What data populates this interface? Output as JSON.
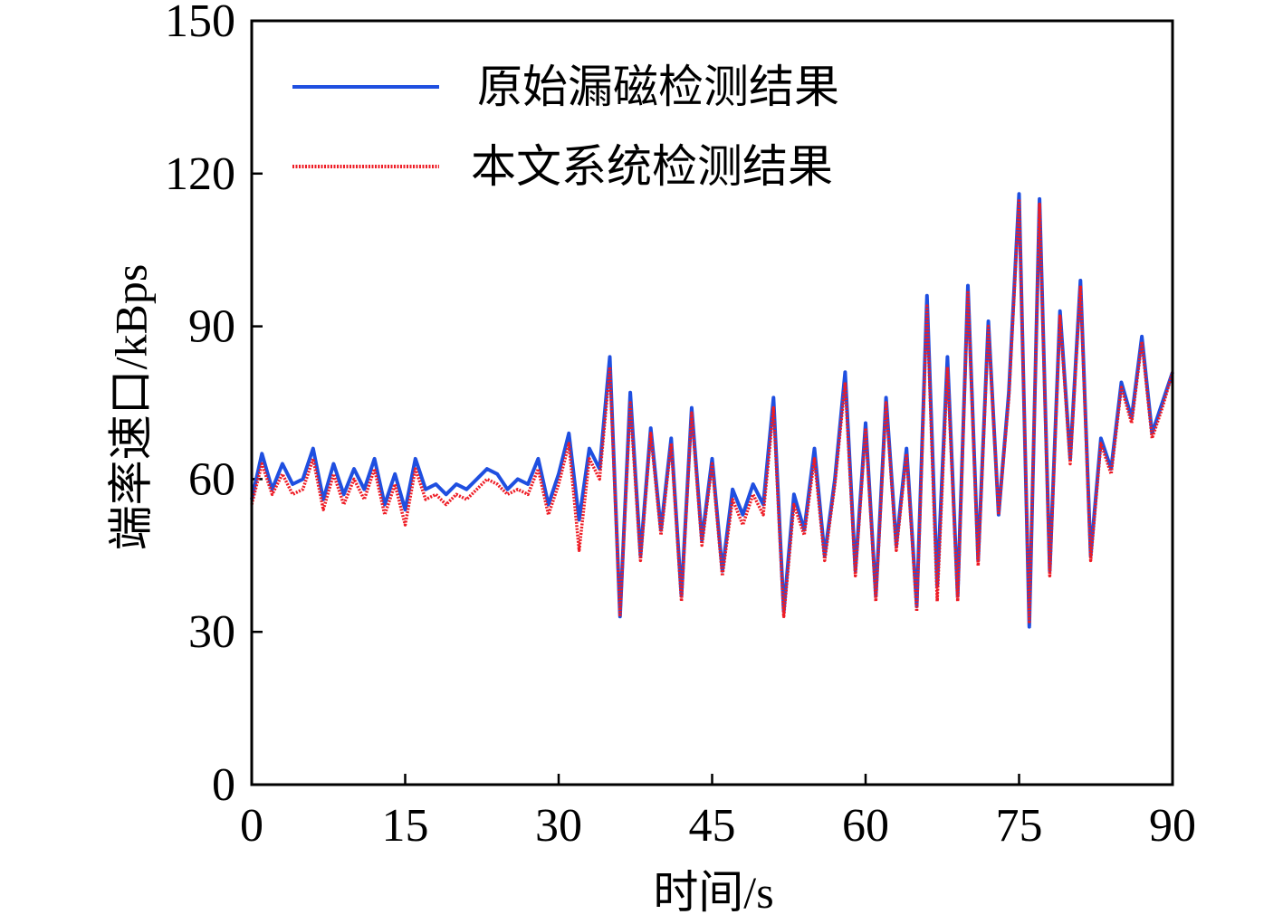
{
  "chart_data": {
    "type": "line",
    "xlabel": "时间/s",
    "ylabel": "端率速口/kBps",
    "x": [
      0,
      1,
      2,
      3,
      4,
      5,
      6,
      7,
      8,
      9,
      10,
      11,
      12,
      13,
      14,
      15,
      16,
      17,
      18,
      19,
      20,
      21,
      22,
      23,
      24,
      25,
      26,
      27,
      28,
      29,
      30,
      31,
      32,
      33,
      34,
      35,
      36,
      37,
      38,
      39,
      40,
      41,
      42,
      43,
      44,
      45,
      46,
      47,
      48,
      49,
      50,
      51,
      52,
      53,
      54,
      55,
      56,
      57,
      58,
      59,
      60,
      61,
      62,
      63,
      64,
      65,
      66,
      67,
      68,
      69,
      70,
      71,
      72,
      73,
      74,
      75,
      76,
      77,
      78,
      79,
      80,
      81,
      82,
      83,
      84,
      85,
      86,
      87,
      88,
      89,
      90
    ],
    "series": [
      {
        "name": "原始漏磁检测结果",
        "color": "#1f4fe0",
        "style": "solid",
        "values": [
          56,
          65,
          58,
          63,
          59,
          60,
          66,
          56,
          63,
          57,
          62,
          58,
          64,
          55,
          61,
          54,
          64,
          58,
          59,
          57,
          59,
          58,
          60,
          62,
          61,
          58,
          60,
          59,
          64,
          55,
          61,
          69,
          52,
          66,
          62,
          84,
          33,
          77,
          45,
          70,
          50,
          68,
          37,
          74,
          48,
          64,
          42,
          58,
          53,
          59,
          55,
          76,
          34,
          57,
          50,
          66,
          45,
          60,
          81,
          42,
          71,
          37,
          76,
          47,
          66,
          35,
          96,
          39,
          84,
          37,
          98,
          44,
          91,
          53,
          77,
          116,
          31,
          115,
          42,
          93,
          64,
          99,
          45,
          68,
          62,
          79,
          72,
          88,
          69,
          75,
          81
        ]
      },
      {
        "name": "本文系统检测结果",
        "color": "#ee1c25",
        "style": "dotted",
        "values": [
          55,
          63,
          57,
          61,
          57,
          58,
          64,
          54,
          61,
          55,
          60,
          56,
          62,
          53,
          59,
          51,
          62,
          56,
          57,
          55,
          57,
          56,
          58,
          60,
          59,
          57,
          58,
          57,
          62,
          53,
          59,
          67,
          46,
          64,
          60,
          82,
          33,
          75,
          44,
          69,
          49,
          67,
          36,
          73,
          47,
          63,
          41,
          56,
          51,
          57,
          53,
          74,
          33,
          55,
          49,
          64,
          44,
          59,
          79,
          41,
          70,
          36,
          75,
          46,
          65,
          34,
          94,
          36,
          82,
          36,
          97,
          43,
          90,
          53,
          76,
          115,
          32,
          114,
          41,
          92,
          63,
          98,
          44,
          67,
          61,
          78,
          71,
          87,
          68,
          74,
          81
        ]
      }
    ],
    "xlim": [
      0,
      90
    ],
    "xticks": [
      0,
      15,
      30,
      45,
      60,
      75,
      90
    ],
    "ylim": [
      0,
      150
    ],
    "yticks": [
      0,
      30,
      60,
      90,
      120,
      150
    ],
    "legend": "upper left"
  }
}
